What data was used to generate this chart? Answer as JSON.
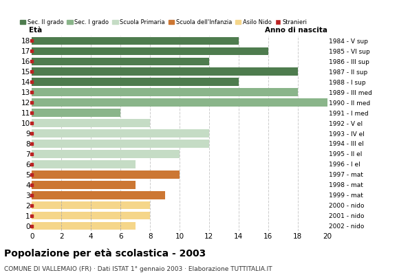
{
  "ages": [
    18,
    17,
    16,
    15,
    14,
    13,
    12,
    11,
    10,
    9,
    8,
    7,
    6,
    5,
    4,
    3,
    2,
    1,
    0
  ],
  "values": [
    14,
    16,
    12,
    18,
    14,
    18,
    20,
    6,
    8,
    12,
    12,
    10,
    7,
    10,
    7,
    9,
    8,
    8,
    7
  ],
  "birth_years": [
    "1984 - V sup",
    "1985 - VI sup",
    "1986 - III sup",
    "1987 - II sup",
    "1988 - I sup",
    "1989 - III med",
    "1990 - II med",
    "1991 - I med",
    "1992 - V el",
    "1993 - IV el",
    "1994 - III el",
    "1995 - II el",
    "1996 - I el",
    "1997 - mat",
    "1998 - mat",
    "1999 - mat",
    "2000 - nido",
    "2001 - nido",
    "2002 - nido"
  ],
  "bar_colors": {
    "18": "#4e7c4e",
    "17": "#4e7c4e",
    "16": "#4e7c4e",
    "15": "#4e7c4e",
    "14": "#4e7c4e",
    "13": "#8ab58a",
    "12": "#8ab58a",
    "11": "#8ab58a",
    "10": "#c5dcc5",
    "9": "#c5dcc5",
    "8": "#c5dcc5",
    "7": "#c5dcc5",
    "6": "#c5dcc5",
    "5": "#cc7733",
    "4": "#cc7733",
    "3": "#cc7733",
    "2": "#f5d68a",
    "1": "#f5d68a",
    "0": "#f5d68a"
  },
  "stranieri_color": "#bb2222",
  "title": "Popolazione per età scolastica - 2003",
  "subtitle": "COMUNE DI VALLEMAIO (FR) · Dati ISTAT 1° gennaio 2003 · Elaborazione TUTTITALIA.IT",
  "xlabel_eta": "Età",
  "xlabel_anno": "Anno di nascita",
  "xlim": [
    0,
    20
  ],
  "xticks": [
    0,
    2,
    4,
    6,
    8,
    10,
    12,
    14,
    16,
    18,
    20
  ],
  "bg_color": "#ffffff",
  "grid_color": "#cccccc",
  "legend_labels": [
    "Sec. II grado",
    "Sec. I grado",
    "Scuola Primaria",
    "Scuola dell'Infanzia",
    "Asilo Nido",
    "Stranieri"
  ],
  "legend_colors": [
    "#4e7c4e",
    "#8ab58a",
    "#c5dcc5",
    "#cc7733",
    "#f5d68a",
    "#bb2222"
  ],
  "asilo_nido_ages": [
    0,
    1,
    2
  ]
}
